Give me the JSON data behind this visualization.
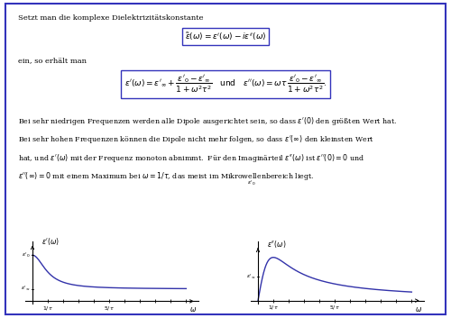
{
  "background_color": "#ffffff",
  "border_color": "#3333bb",
  "text_color": "#000000",
  "curve_color": "#3333aa",
  "line1": "Setzt man die komplexe Dielektrizitätskonstante",
  "eq1": "$\\tilde{\\varepsilon}(\\omega) = \\varepsilon'(\\omega) - i\\varepsilon''(\\omega)$",
  "line2": "ein, so erhält man",
  "eq2a": "$\\varepsilon'(\\omega) = \\varepsilon'_{\\infty} + \\dfrac{\\varepsilon'_0 - \\varepsilon'_{\\infty}}{1 + \\omega^2\\tau^2}$",
  "eq2b": "\\quad\\text{und}\\quad",
  "eq2c": "$\\varepsilon''(\\omega) = \\omega\\tau\\,\\dfrac{\\varepsilon'_0 - \\varepsilon'_{\\infty}}{1 + \\omega^2\\tau^2}.$",
  "para1": "Bei sehr niedrigen Frequenzen werden alle Dipole ausgerichtet sein, so dass $\\varepsilon'(0)$ den größten Wert hat.",
  "para2": "Bei sehr hohen Frequenzen können die Dipole nicht mehr folgen, so dass $\\varepsilon'(\\infty)$ den kleinsten Wert",
  "para3": "hat, und $\\varepsilon'(\\omega)$ mit der Frequenz monoton abnimmt.  Für den Imaginärteil $\\varepsilon''(\\omega)$ ist $\\varepsilon''(0) = 0$ und",
  "para4": "$\\varepsilon''(\\infty) = 0$ mit einem Maximum bei $\\omega = 1/\\tau$, das meist im Mikrowellenbereich liegt.",
  "eps0": 0.75,
  "eps_inf": 0.2,
  "figsize": [
    5.0,
    3.53
  ],
  "dpi": 100
}
